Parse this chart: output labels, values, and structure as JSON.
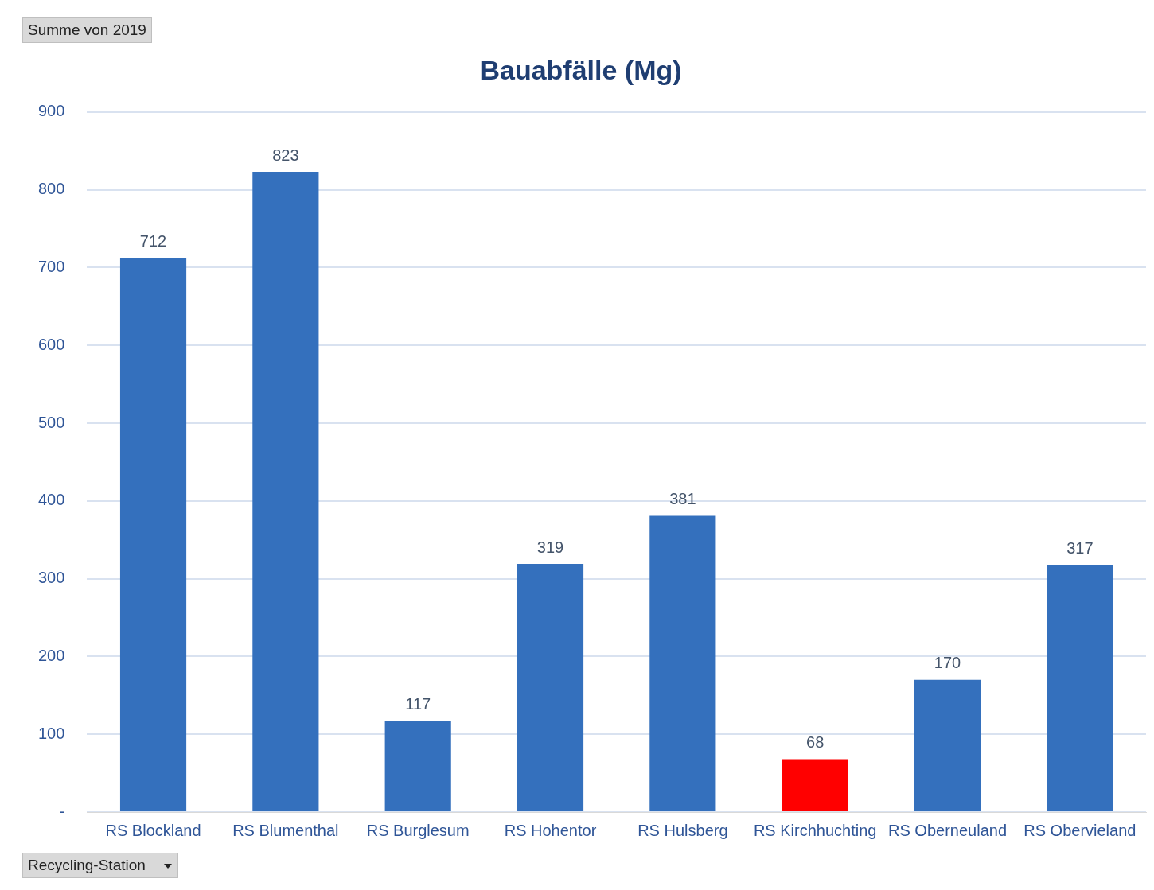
{
  "chart_data": {
    "type": "bar",
    "title": "Bauabfälle (Mg)",
    "categories": [
      "RS Blockland",
      "RS Blumenthal",
      "RS Burglesum",
      "RS Hohentor",
      "RS Hulsberg",
      "RS Kirchhuchting",
      "RS Oberneuland",
      "RS Obervieland"
    ],
    "values": [
      712,
      823,
      117,
      319,
      381,
      68,
      170,
      317
    ],
    "colors": [
      "#3470bd",
      "#3470bd",
      "#3470bd",
      "#3470bd",
      "#3470bd",
      "#ff0000",
      "#3470bd",
      "#3470bd"
    ],
    "ylim": [
      0,
      900
    ],
    "yticks": [
      {
        "value": 0,
        "label": "-"
      },
      100,
      200,
      300,
      400,
      500,
      600,
      700,
      800,
      900
    ],
    "grid": "y",
    "legend": false,
    "data_labels": true,
    "annotations": [
      "Summe von 2019",
      "Recycling-Station"
    ]
  }
}
